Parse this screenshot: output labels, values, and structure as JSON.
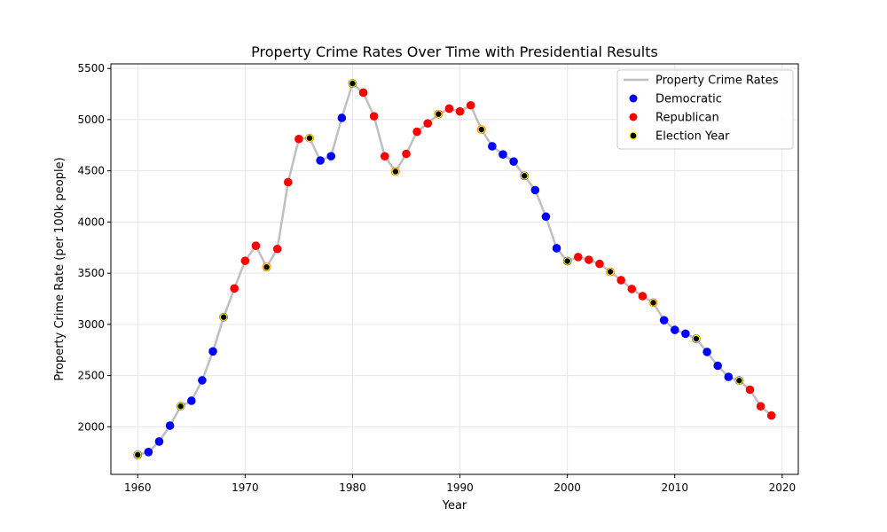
{
  "chart_data": {
    "type": "line",
    "title": "Property Crime Rates Over Time with Presidential Results",
    "xlabel": "Year",
    "ylabel": "Property Crime Rate (per 100k people)",
    "xlim": [
      1957.5,
      2021.5
    ],
    "ylim": [
      1535,
      5545
    ],
    "xticks": [
      1960,
      1970,
      1980,
      1990,
      2000,
      2010,
      2020
    ],
    "yticks": [
      2000,
      2500,
      3000,
      3500,
      4000,
      4500,
      5000,
      5500
    ],
    "grid": true,
    "legend_position": "top-right",
    "legend": [
      {
        "label": "Property Crime Rates",
        "kind": "line",
        "color": "#bfbfbf"
      },
      {
        "label": "Democratic",
        "kind": "point",
        "color": "#0000ff"
      },
      {
        "label": "Republican",
        "kind": "point",
        "color": "#ff0000"
      },
      {
        "label": "Election Year",
        "kind": "point",
        "color": "#000000",
        "edge": "#ffff00"
      }
    ],
    "line_color": "#bfbfbf",
    "party_colors": {
      "Democratic": "#0000ff",
      "Republican": "#ff0000"
    },
    "election_color": "#000000",
    "election_edge": "#ffff00",
    "points": [
      {
        "x": 1960,
        "y": 1726,
        "party": "Democratic",
        "election": true
      },
      {
        "x": 1961,
        "y": 1753,
        "party": "Democratic",
        "election": false
      },
      {
        "x": 1962,
        "y": 1856,
        "party": "Democratic",
        "election": false
      },
      {
        "x": 1963,
        "y": 2011,
        "party": "Democratic",
        "election": false
      },
      {
        "x": 1964,
        "y": 2200,
        "party": "Democratic",
        "election": true
      },
      {
        "x": 1965,
        "y": 2254,
        "party": "Democratic",
        "election": false
      },
      {
        "x": 1966,
        "y": 2454,
        "party": "Democratic",
        "election": false
      },
      {
        "x": 1967,
        "y": 2736,
        "party": "Democratic",
        "election": false
      },
      {
        "x": 1968,
        "y": 3071,
        "party": "Democratic",
        "election": true
      },
      {
        "x": 1969,
        "y": 3351,
        "party": "Republican",
        "election": false
      },
      {
        "x": 1970,
        "y": 3621,
        "party": "Republican",
        "election": false
      },
      {
        "x": 1971,
        "y": 3768,
        "party": "Republican",
        "election": false
      },
      {
        "x": 1972,
        "y": 3560,
        "party": "Republican",
        "election": true
      },
      {
        "x": 1973,
        "y": 3737,
        "party": "Republican",
        "election": false
      },
      {
        "x": 1974,
        "y": 4389,
        "party": "Republican",
        "election": false
      },
      {
        "x": 1975,
        "y": 4811,
        "party": "Republican",
        "election": false
      },
      {
        "x": 1976,
        "y": 4820,
        "party": "Republican",
        "election": true
      },
      {
        "x": 1977,
        "y": 4601,
        "party": "Democratic",
        "election": false
      },
      {
        "x": 1978,
        "y": 4643,
        "party": "Democratic",
        "election": false
      },
      {
        "x": 1979,
        "y": 5017,
        "party": "Democratic",
        "election": false
      },
      {
        "x": 1980,
        "y": 5353,
        "party": "Democratic",
        "election": true
      },
      {
        "x": 1981,
        "y": 5264,
        "party": "Republican",
        "election": false
      },
      {
        "x": 1982,
        "y": 5033,
        "party": "Republican",
        "election": false
      },
      {
        "x": 1983,
        "y": 4642,
        "party": "Republican",
        "election": false
      },
      {
        "x": 1984,
        "y": 4493,
        "party": "Republican",
        "election": true
      },
      {
        "x": 1985,
        "y": 4666,
        "party": "Republican",
        "election": false
      },
      {
        "x": 1986,
        "y": 4882,
        "party": "Republican",
        "election": false
      },
      {
        "x": 1987,
        "y": 4963,
        "party": "Republican",
        "election": false
      },
      {
        "x": 1988,
        "y": 5054,
        "party": "Republican",
        "election": true
      },
      {
        "x": 1989,
        "y": 5108,
        "party": "Republican",
        "election": false
      },
      {
        "x": 1990,
        "y": 5080,
        "party": "Republican",
        "election": false
      },
      {
        "x": 1991,
        "y": 5140,
        "party": "Republican",
        "election": false
      },
      {
        "x": 1992,
        "y": 4903,
        "party": "Republican",
        "election": true
      },
      {
        "x": 1993,
        "y": 4740,
        "party": "Democratic",
        "election": false
      },
      {
        "x": 1994,
        "y": 4660,
        "party": "Democratic",
        "election": false
      },
      {
        "x": 1995,
        "y": 4591,
        "party": "Democratic",
        "election": false
      },
      {
        "x": 1996,
        "y": 4451,
        "party": "Democratic",
        "election": true
      },
      {
        "x": 1997,
        "y": 4312,
        "party": "Democratic",
        "election": false
      },
      {
        "x": 1998,
        "y": 4053,
        "party": "Democratic",
        "election": false
      },
      {
        "x": 1999,
        "y": 3744,
        "party": "Democratic",
        "election": false
      },
      {
        "x": 2000,
        "y": 3618,
        "party": "Democratic",
        "election": true
      },
      {
        "x": 2001,
        "y": 3658,
        "party": "Republican",
        "election": false
      },
      {
        "x": 2002,
        "y": 3631,
        "party": "Republican",
        "election": false
      },
      {
        "x": 2003,
        "y": 3591,
        "party": "Republican",
        "election": false
      },
      {
        "x": 2004,
        "y": 3514,
        "party": "Republican",
        "election": true
      },
      {
        "x": 2005,
        "y": 3432,
        "party": "Republican",
        "election": false
      },
      {
        "x": 2006,
        "y": 3346,
        "party": "Republican",
        "election": false
      },
      {
        "x": 2007,
        "y": 3276,
        "party": "Republican",
        "election": false
      },
      {
        "x": 2008,
        "y": 3212,
        "party": "Republican",
        "election": true
      },
      {
        "x": 2009,
        "y": 3041,
        "party": "Democratic",
        "election": false
      },
      {
        "x": 2010,
        "y": 2946,
        "party": "Democratic",
        "election": false
      },
      {
        "x": 2011,
        "y": 2909,
        "party": "Democratic",
        "election": false
      },
      {
        "x": 2012,
        "y": 2860,
        "party": "Democratic",
        "election": true
      },
      {
        "x": 2013,
        "y": 2731,
        "party": "Democratic",
        "election": false
      },
      {
        "x": 2014,
        "y": 2596,
        "party": "Democratic",
        "election": false
      },
      {
        "x": 2015,
        "y": 2487,
        "party": "Democratic",
        "election": false
      },
      {
        "x": 2016,
        "y": 2451,
        "party": "Democratic",
        "election": true
      },
      {
        "x": 2017,
        "y": 2362,
        "party": "Republican",
        "election": false
      },
      {
        "x": 2018,
        "y": 2200,
        "party": "Republican",
        "election": false
      },
      {
        "x": 2019,
        "y": 2110,
        "party": "Republican",
        "election": false
      }
    ]
  }
}
